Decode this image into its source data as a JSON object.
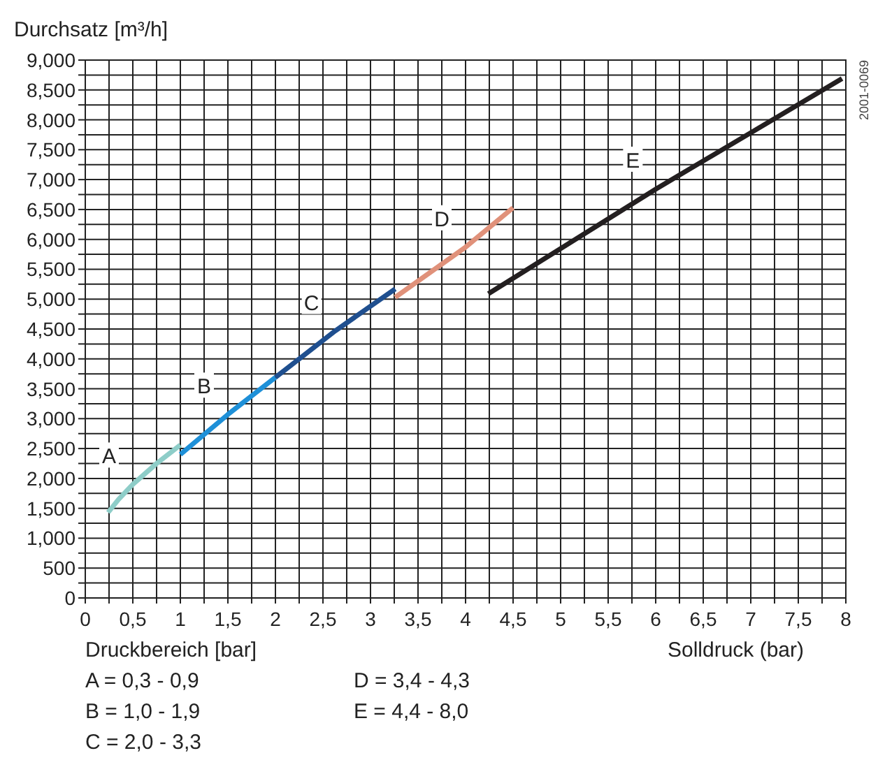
{
  "chart_data": {
    "type": "line",
    "ylabel": "Durchsatz [m³/h]",
    "xlabel": "Solldruck (bar)",
    "xlim": [
      0,
      8
    ],
    "xticks": [
      {
        "value": 0,
        "label": "0"
      },
      {
        "value": 0.25,
        "label": null
      },
      {
        "value": 0.5,
        "label": "0,5"
      },
      {
        "value": 0.75,
        "label": null
      },
      {
        "value": 1,
        "label": "1"
      },
      {
        "value": 1.25,
        "label": null
      },
      {
        "value": 1.5,
        "label": "1,5"
      },
      {
        "value": 1.75,
        "label": null
      },
      {
        "value": 2,
        "label": "2"
      },
      {
        "value": 2.25,
        "label": null
      },
      {
        "value": 2.5,
        "label": "2,5"
      },
      {
        "value": 2.75,
        "label": null
      },
      {
        "value": 3,
        "label": "3"
      },
      {
        "value": 3.25,
        "label": null
      },
      {
        "value": 3.5,
        "label": "3,5"
      },
      {
        "value": 3.75,
        "label": null
      },
      {
        "value": 4,
        "label": "4"
      },
      {
        "value": 4.25,
        "label": null
      },
      {
        "value": 4.5,
        "label": "4,5"
      },
      {
        "value": 4.75,
        "label": null
      },
      {
        "value": 5,
        "label": "5"
      },
      {
        "value": 5.25,
        "label": null
      },
      {
        "value": 5.5,
        "label": "5,5"
      },
      {
        "value": 5.75,
        "label": null
      },
      {
        "value": 6,
        "label": "6"
      },
      {
        "value": 6.25,
        "label": null
      },
      {
        "value": 6.5,
        "label": "6,5"
      },
      {
        "value": 6.75,
        "label": null
      },
      {
        "value": 7,
        "label": "7"
      },
      {
        "value": 7.25,
        "label": null
      },
      {
        "value": 7.5,
        "label": "7,5"
      },
      {
        "value": 7.75,
        "label": null
      },
      {
        "value": 8,
        "label": "8"
      }
    ],
    "ylim": [
      0,
      9000
    ],
    "yticks": [
      {
        "value": 0,
        "label": "0"
      },
      {
        "value": 250,
        "label": null
      },
      {
        "value": 500,
        "label": "500"
      },
      {
        "value": 750,
        "label": null
      },
      {
        "value": 1000,
        "label": "1,000"
      },
      {
        "value": 1250,
        "label": null
      },
      {
        "value": 1500,
        "label": "1,500"
      },
      {
        "value": 1750,
        "label": null
      },
      {
        "value": 2000,
        "label": "2,000"
      },
      {
        "value": 2250,
        "label": null
      },
      {
        "value": 2500,
        "label": "2,500"
      },
      {
        "value": 2750,
        "label": null
      },
      {
        "value": 3000,
        "label": "3,000"
      },
      {
        "value": 3250,
        "label": null
      },
      {
        "value": 3500,
        "label": "3,500"
      },
      {
        "value": 3750,
        "label": null
      },
      {
        "value": 4000,
        "label": "4,000"
      },
      {
        "value": 4250,
        "label": null
      },
      {
        "value": 4500,
        "label": "4,500"
      },
      {
        "value": 4750,
        "label": null
      },
      {
        "value": 5000,
        "label": "5,000"
      },
      {
        "value": 5250,
        "label": null
      },
      {
        "value": 5500,
        "label": "5,500"
      },
      {
        "value": 5750,
        "label": null
      },
      {
        "value": 6000,
        "label": "6,000"
      },
      {
        "value": 6250,
        "label": null
      },
      {
        "value": 6500,
        "label": "6,500"
      },
      {
        "value": 6750,
        "label": null
      },
      {
        "value": 7000,
        "label": "7,000"
      },
      {
        "value": 7250,
        "label": null
      },
      {
        "value": 7500,
        "label": "7,500"
      },
      {
        "value": 7750,
        "label": null
      },
      {
        "value": 8000,
        "label": "8,000"
      },
      {
        "value": 8250,
        "label": null
      },
      {
        "value": 8500,
        "label": "8,500"
      },
      {
        "value": 8750,
        "label": null
      },
      {
        "value": 9000,
        "label": "9,000"
      }
    ],
    "grid": true,
    "marker": "none",
    "line_style": "solid",
    "series": [
      {
        "name": "A",
        "color": "#8ecdc8",
        "x": [
          0.24,
          0.35,
          0.5,
          0.75,
          1.0
        ],
        "values": [
          1430,
          1650,
          1900,
          2250,
          2560
        ]
      },
      {
        "name": "B",
        "color": "#1e90d8",
        "x": [
          1.0,
          1.5,
          2.0
        ],
        "values": [
          2400,
          3070,
          3690
        ]
      },
      {
        "name": "C",
        "color": "#1f4f8f",
        "x": [
          2.0,
          2.63,
          3.26
        ],
        "values": [
          3690,
          4470,
          5170
        ]
      },
      {
        "name": "D",
        "color": "#e0917a",
        "x": [
          3.26,
          4.0,
          4.5
        ],
        "values": [
          5030,
          5870,
          6530
        ]
      },
      {
        "name": "E",
        "color": "#231f20",
        "x": [
          4.24,
          6.01,
          7.96
        ],
        "values": [
          5090,
          6850,
          8690
        ]
      }
    ],
    "annotations": [
      "Druckbereich [bar]",
      "A = 0,3 - 0,9",
      "B = 1,0 - 1,9",
      "C = 2,0 - 3,3",
      "D = 3,4 - 4,3",
      "E = 4,4 - 8,0",
      "2001-0069"
    ]
  }
}
